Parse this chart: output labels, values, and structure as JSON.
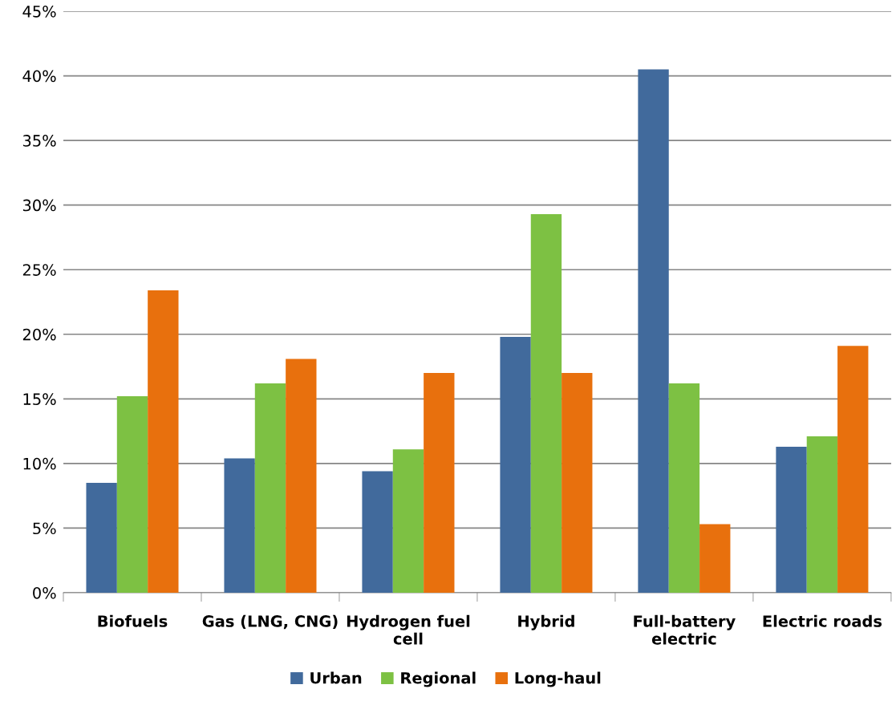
{
  "chart_data": {
    "type": "bar",
    "categories": [
      "Biofuels",
      "Gas (LNG, CNG)",
      "Hydrogen fuel cell",
      "Hybrid",
      "Full-battery electric",
      "Electric roads"
    ],
    "series": [
      {
        "name": "Urban",
        "color": "#416a9c",
        "values": [
          8.5,
          10.4,
          9.4,
          19.8,
          40.5,
          11.3
        ]
      },
      {
        "name": "Regional",
        "color": "#7dc143",
        "values": [
          15.2,
          16.2,
          11.1,
          29.3,
          16.2,
          12.1
        ]
      },
      {
        "name": "Long-haul",
        "color": "#e8700d",
        "values": [
          23.4,
          18.1,
          17.0,
          17.0,
          5.3,
          19.1
        ]
      }
    ],
    "ylim": [
      0,
      45
    ],
    "yticks": [
      {
        "value": 0,
        "label": "0%"
      },
      {
        "value": 5,
        "label": "5%"
      },
      {
        "value": 10,
        "label": "10%"
      },
      {
        "value": 15,
        "label": "15%"
      },
      {
        "value": 20,
        "label": "20%"
      },
      {
        "value": 25,
        "label": "25%"
      },
      {
        "value": 30,
        "label": "30%"
      },
      {
        "value": 35,
        "label": "35%"
      },
      {
        "value": 40,
        "label": "40%"
      },
      {
        "value": 45,
        "label": "45%"
      }
    ],
    "grid": "y",
    "legend": "bottom"
  }
}
